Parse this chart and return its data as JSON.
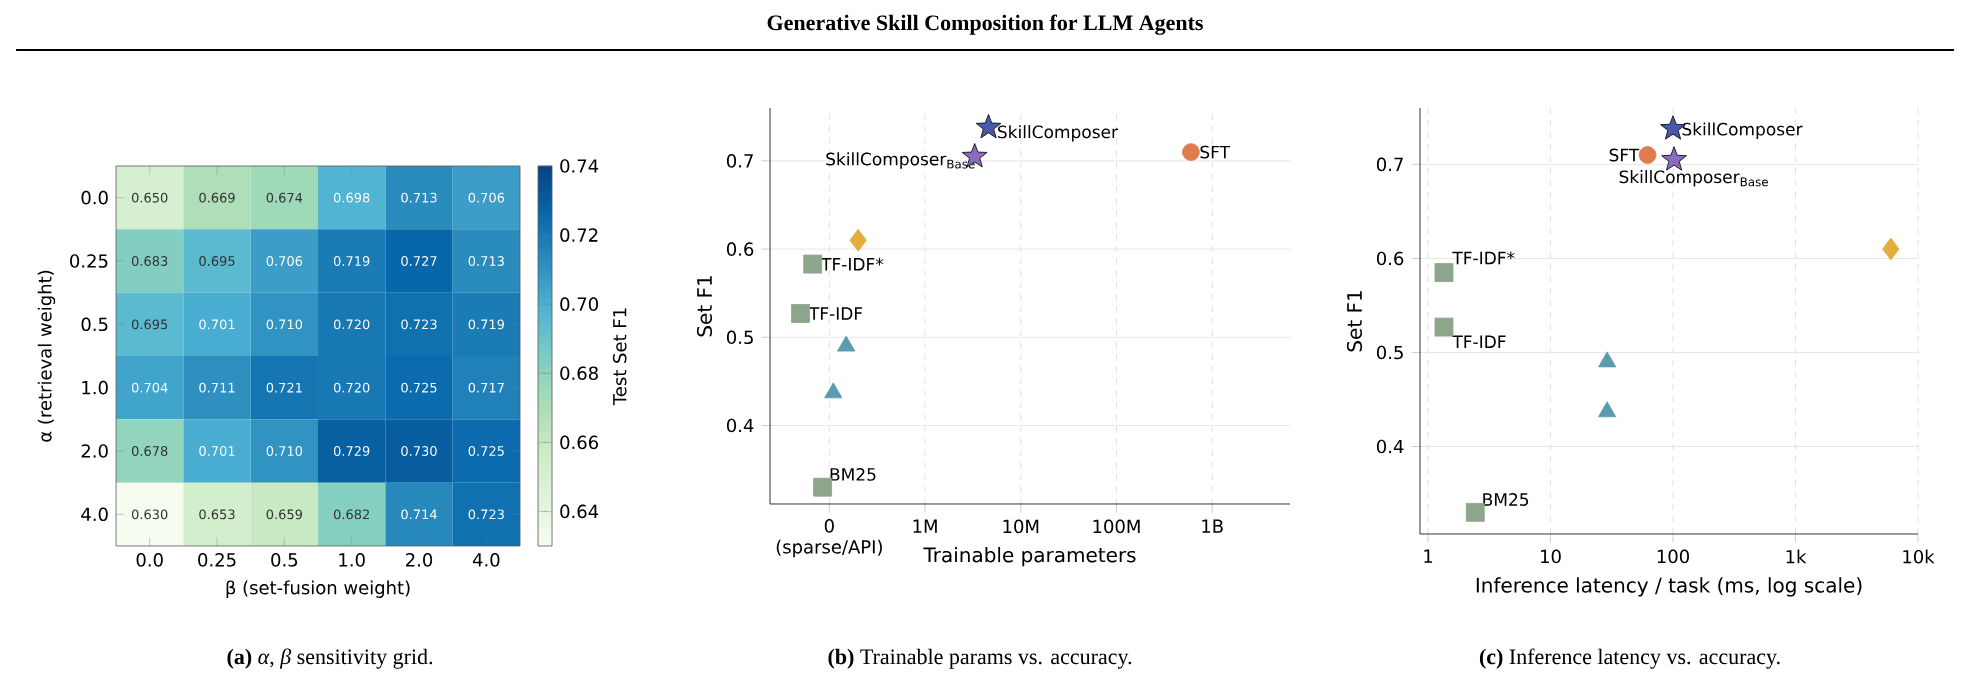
{
  "chart_data": [
    {
      "type": "heatmap",
      "xlabel": "β (set-fusion weight)",
      "ylabel": "α (retrieval weight)",
      "clabel": "Test Set F1",
      "categories": [
        "0.0",
        "0.25",
        "0.5",
        "1.0",
        "2.0",
        "4.0"
      ],
      "y_categories": [
        "0.0",
        "0.25",
        "0.5",
        "1.0",
        "2.0",
        "4.0"
      ],
      "cells": [
        [
          0.65,
          0.669,
          0.674,
          0.698,
          0.713,
          0.706
        ],
        [
          0.683,
          0.695,
          0.706,
          0.719,
          0.727,
          0.713
        ],
        [
          0.695,
          0.701,
          0.71,
          0.72,
          0.723,
          0.719
        ],
        [
          0.704,
          0.711,
          0.721,
          0.72,
          0.725,
          0.717
        ],
        [
          0.678,
          0.701,
          0.71,
          0.729,
          0.73,
          0.725
        ],
        [
          0.63,
          0.653,
          0.659,
          0.682,
          0.714,
          0.723
        ]
      ],
      "cell_labels": [
        [
          "0.650",
          "0.669",
          "0.674",
          "0.698",
          "0.713",
          "0.706"
        ],
        [
          "0.683",
          "0.695",
          "0.706",
          "0.719",
          "0.727",
          "0.713"
        ],
        [
          "0.695",
          "0.701",
          "0.710",
          "0.720",
          "0.723",
          "0.719"
        ],
        [
          "0.704",
          "0.711",
          "0.721",
          "0.720",
          "0.725",
          "0.717"
        ],
        [
          "0.678",
          "0.701",
          "0.710",
          "0.729",
          "0.730",
          "0.725"
        ],
        [
          "0.630",
          "0.653",
          "0.659",
          "0.682",
          "0.714",
          "0.723"
        ]
      ],
      "clim": [
        0.63,
        0.74
      ],
      "cticks": [
        0.64,
        0.66,
        0.68,
        {
          "value": 0.7,
          "label": "0.70"
        },
        0.72,
        0.74
      ],
      "annotations": [
        "**(a)** *α*, *β* sensitivity grid."
      ]
    },
    {
      "type": "scatter",
      "title": "Generative Skill Composition for LLM Agents",
      "xlabel": "Trainable parameters",
      "ylabel": "Set F1",
      "log": "x",
      "grid": true,
      "xlim": [
        24000,
        6500000000
      ],
      "ylim": [
        0.311,
        0.76
      ],
      "xticks": [
        {
          "value": 100000,
          "label": null
        },
        {
          "value": 1000000,
          "label": "1M"
        },
        {
          "value": 10000000,
          "label": "10M"
        },
        {
          "value": 100000000,
          "label": "100M"
        },
        {
          "value": 1000000000,
          "label": "1B"
        }
      ],
      "yticks": [
        0.4,
        0.5,
        0.6,
        0.7
      ],
      "series": [
        {
          "name": "SkillComposer",
          "color": "#4a59a7",
          "marker": "star",
          "x": [
            4600000
          ],
          "values": [
            0.738
          ]
        },
        {
          "name": "SkillComposer$_{Base}$",
          "color": "#8a6bbe",
          "marker": "star",
          "x": [
            3300000
          ],
          "values": [
            0.705
          ]
        },
        {
          "name": "SFT",
          "color": "#e07b50",
          "marker": "circle",
          "x": [
            600000000
          ],
          "values": [
            0.71
          ]
        },
        {
          "color": "#e2ae3e",
          "marker": "diamond",
          "x": [
            200000
          ],
          "values": [
            0.61
          ]
        },
        {
          "name": "TF-IDF*",
          "color": "#8ca58b",
          "marker": "square",
          "x": [
            67000
          ],
          "values": [
            0.583
          ]
        },
        {
          "name": "TF-IDF",
          "color": "#8ca58b",
          "marker": "square",
          "x": [
            50000
          ],
          "values": [
            0.527
          ]
        },
        {
          "color": "#5a9cae",
          "marker": "triangle",
          "x": [
            150000
          ],
          "values": [
            0.49
          ]
        },
        {
          "color": "#5a9cae",
          "marker": "triangle",
          "x": [
            110000
          ],
          "values": [
            0.437
          ]
        },
        {
          "name": "BM25",
          "color": "#8ca58b",
          "marker": "square",
          "x": [
            85000
          ],
          "values": [
            0.33
          ]
        }
      ],
      "annotations": [
        "0 (sparse/API)",
        "**(b)** Trainable params vs. accuracy."
      ]
    },
    {
      "type": "scatter",
      "xlabel": "Inference latency / task (ms, log scale)",
      "ylabel": "Set F1",
      "log": "x",
      "grid": true,
      "xlim": [
        0.86,
        10000
      ],
      "ylim": [
        0.307,
        0.76
      ],
      "xticks": [
        1,
        10,
        100,
        {
          "value": 1000,
          "label": "1k"
        },
        {
          "value": 10000,
          "label": "10k"
        }
      ],
      "yticks": [
        0.4,
        0.5,
        0.6,
        0.7
      ],
      "series": [
        {
          "name": "SkillComposer",
          "color": "#4a59a7",
          "marker": "star",
          "x": [
            100
          ],
          "values": [
            0.738
          ]
        },
        {
          "name": "SkillComposer$_{Base}$",
          "color": "#8a6bbe",
          "marker": "star",
          "x": [
            102
          ],
          "values": [
            0.705
          ]
        },
        {
          "name": "SFT",
          "color": "#e07b50",
          "marker": "circle",
          "x": [
            62
          ],
          "values": [
            0.71
          ]
        },
        {
          "color": "#e2ae3e",
          "marker": "diamond",
          "x": [
            6000
          ],
          "values": [
            0.61
          ]
        },
        {
          "name": "TF-IDF*",
          "color": "#8ca58b",
          "marker": "square",
          "x": [
            1.35
          ],
          "values": [
            0.585
          ]
        },
        {
          "name": "TF-IDF",
          "color": "#8ca58b",
          "marker": "square",
          "x": [
            1.35
          ],
          "values": [
            0.527
          ]
        },
        {
          "color": "#5a9cae",
          "marker": "triangle",
          "x": [
            29
          ],
          "values": [
            0.49
          ]
        },
        {
          "color": "#5a9cae",
          "marker": "triangle",
          "x": [
            29
          ],
          "values": [
            0.437
          ]
        },
        {
          "name": "BM25",
          "color": "#8ca58b",
          "marker": "square",
          "x": [
            2.43
          ],
          "values": [
            0.33
          ]
        }
      ],
      "annotations": [
        "**(c)** Inference latency vs. accuracy."
      ]
    }
  ]
}
